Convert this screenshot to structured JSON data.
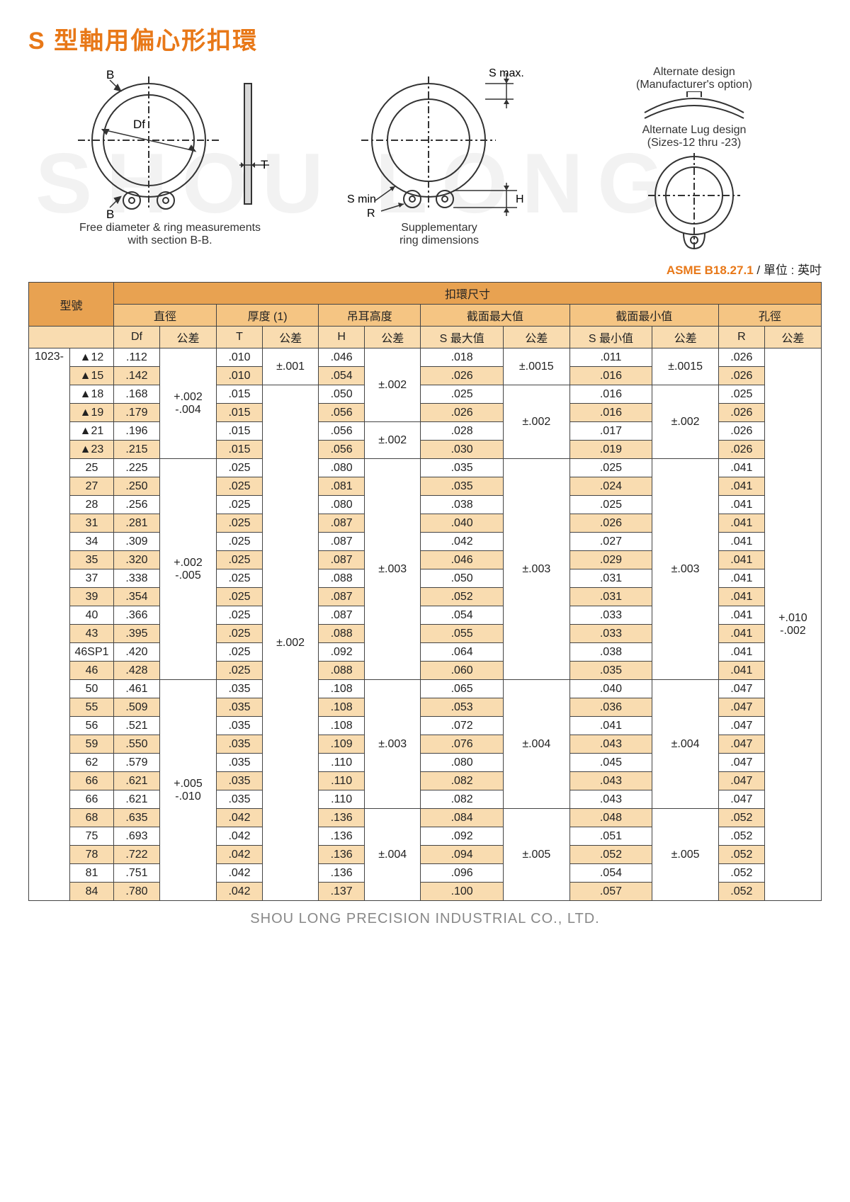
{
  "title": "S 型軸用偏心形扣環",
  "watermark": "SHOU LONG",
  "diagrams": {
    "left_top_label": "B",
    "left_df": "Df",
    "left_bottom_label": "B",
    "left_caption1": "Free diameter & ring measurements",
    "left_caption2": "with section B-B.",
    "side_t": "T",
    "mid_smax": "S max.",
    "mid_smin": "S min",
    "mid_r": "R",
    "mid_h": "H",
    "mid_caption1": "Supplementary",
    "mid_caption2": "ring dimensions",
    "right_alt1a": "Alternate design",
    "right_alt1b": "(Manufacturer's option)",
    "right_alt2a": "Alternate Lug design",
    "right_alt2b": "(Sizes-12 thru -23)"
  },
  "spec": {
    "code": "ASME B18.27.1",
    "unit_label": " / 單位 : 英吋"
  },
  "headers": {
    "model": "型號",
    "ring_dim": "扣環尺寸",
    "diameter": "直徑",
    "thickness": "厚度 (1)",
    "lug_h": "吊耳高度",
    "sec_max": "截面最大值",
    "sec_min": "截面最小值",
    "hole": "孔徑",
    "df": "Df",
    "tol": "公差",
    "t": "T",
    "h": "H",
    "smax": "S 最大值",
    "smin": "S 最小值",
    "r": "R"
  },
  "model_prefix": "1023-",
  "df_tol_a": "+.002\n-.004",
  "df_tol_b": "+.002\n-.005",
  "df_tol_c": "+.005\n-.010",
  "t_tol_a": "±.001",
  "t_tol_b": "±.002",
  "h_tol_a": "±.002",
  "h_tol_b": "±.003",
  "h_tol_c": "±.004",
  "smax_tol_a": "±.0015",
  "smax_tol_b": "±.002",
  "smax_tol_c": "±.003",
  "smax_tol_d": "±.004",
  "smax_tol_e": "±.005",
  "smin_tol_a": "±.0015",
  "smin_tol_b": "±.002",
  "smin_tol_c": "±.003",
  "smin_tol_d": "±.004",
  "smin_tol_e": "±.005",
  "r_tol": "+.010\n-.002",
  "rows": [
    {
      "id": "▲12",
      "df": ".112",
      "t": ".010",
      "h": ".046",
      "smax": ".018",
      "smin": ".011",
      "r": ".026"
    },
    {
      "id": "▲15",
      "df": ".142",
      "t": ".010",
      "h": ".054",
      "smax": ".026",
      "smin": ".016",
      "r": ".026"
    },
    {
      "id": "▲18",
      "df": ".168",
      "t": ".015",
      "h": ".050",
      "smax": ".025",
      "smin": ".016",
      "r": ".025"
    },
    {
      "id": "▲19",
      "df": ".179",
      "t": ".015",
      "h": ".056",
      "smax": ".026",
      "smin": ".016",
      "r": ".026"
    },
    {
      "id": "▲21",
      "df": ".196",
      "t": ".015",
      "h": ".056",
      "smax": ".028",
      "smin": ".017",
      "r": ".026"
    },
    {
      "id": "▲23",
      "df": ".215",
      "t": ".015",
      "h": ".056",
      "smax": ".030",
      "smin": ".019",
      "r": ".026"
    },
    {
      "id": "25",
      "df": ".225",
      "t": ".025",
      "h": ".080",
      "smax": ".035",
      "smin": ".025",
      "r": ".041"
    },
    {
      "id": "27",
      "df": ".250",
      "t": ".025",
      "h": ".081",
      "smax": ".035",
      "smin": ".024",
      "r": ".041"
    },
    {
      "id": "28",
      "df": ".256",
      "t": ".025",
      "h": ".080",
      "smax": ".038",
      "smin": ".025",
      "r": ".041"
    },
    {
      "id": "31",
      "df": ".281",
      "t": ".025",
      "h": ".087",
      "smax": ".040",
      "smin": ".026",
      "r": ".041"
    },
    {
      "id": "34",
      "df": ".309",
      "t": ".025",
      "h": ".087",
      "smax": ".042",
      "smin": ".027",
      "r": ".041"
    },
    {
      "id": "35",
      "df": ".320",
      "t": ".025",
      "h": ".087",
      "smax": ".046",
      "smin": ".029",
      "r": ".041"
    },
    {
      "id": "37",
      "df": ".338",
      "t": ".025",
      "h": ".088",
      "smax": ".050",
      "smin": ".031",
      "r": ".041"
    },
    {
      "id": "39",
      "df": ".354",
      "t": ".025",
      "h": ".087",
      "smax": ".052",
      "smin": ".031",
      "r": ".041"
    },
    {
      "id": "40",
      "df": ".366",
      "t": ".025",
      "h": ".087",
      "smax": ".054",
      "smin": ".033",
      "r": ".041"
    },
    {
      "id": "43",
      "df": ".395",
      "t": ".025",
      "h": ".088",
      "smax": ".055",
      "smin": ".033",
      "r": ".041"
    },
    {
      "id": "46SP1",
      "df": ".420",
      "t": ".025",
      "h": ".092",
      "smax": ".064",
      "smin": ".038",
      "r": ".041"
    },
    {
      "id": "46",
      "df": ".428",
      "t": ".025",
      "h": ".088",
      "smax": ".060",
      "smin": ".035",
      "r": ".041"
    },
    {
      "id": "50",
      "df": ".461",
      "t": ".035",
      "h": ".108",
      "smax": ".065",
      "smin": ".040",
      "r": ".047"
    },
    {
      "id": "55",
      "df": ".509",
      "t": ".035",
      "h": ".108",
      "smax": ".053",
      "smin": ".036",
      "r": ".047"
    },
    {
      "id": "56",
      "df": ".521",
      "t": ".035",
      "h": ".108",
      "smax": ".072",
      "smin": ".041",
      "r": ".047"
    },
    {
      "id": "59",
      "df": ".550",
      "t": ".035",
      "h": ".109",
      "smax": ".076",
      "smin": ".043",
      "r": ".047"
    },
    {
      "id": "62",
      "df": ".579",
      "t": ".035",
      "h": ".110",
      "smax": ".080",
      "smin": ".045",
      "r": ".047"
    },
    {
      "id": "66",
      "df": ".621",
      "t": ".035",
      "h": ".110",
      "smax": ".082",
      "smin": ".043",
      "r": ".047"
    },
    {
      "id": "66",
      "df": ".621",
      "t": ".035",
      "h": ".110",
      "smax": ".082",
      "smin": ".043",
      "r": ".047"
    },
    {
      "id": "68",
      "df": ".635",
      "t": ".042",
      "h": ".136",
      "smax": ".084",
      "smin": ".048",
      "r": ".052"
    },
    {
      "id": "75",
      "df": ".693",
      "t": ".042",
      "h": ".136",
      "smax": ".092",
      "smin": ".051",
      "r": ".052"
    },
    {
      "id": "78",
      "df": ".722",
      "t": ".042",
      "h": ".136",
      "smax": ".094",
      "smin": ".052",
      "r": ".052"
    },
    {
      "id": "81",
      "df": ".751",
      "t": ".042",
      "h": ".136",
      "smax": ".096",
      "smin": ".054",
      "r": ".052"
    },
    {
      "id": "84",
      "df": ".780",
      "t": ".042",
      "h": ".137",
      "smax": ".100",
      "smin": ".057",
      "r": ".052"
    }
  ],
  "footer": "SHOU LONG PRECISION INDUSTRIAL CO., LTD.",
  "colors": {
    "accent": "#e87818",
    "hdr1": "#e8a251",
    "hdr2": "#f5c583",
    "hdr3": "#f9dcb0",
    "border": "#444444"
  }
}
